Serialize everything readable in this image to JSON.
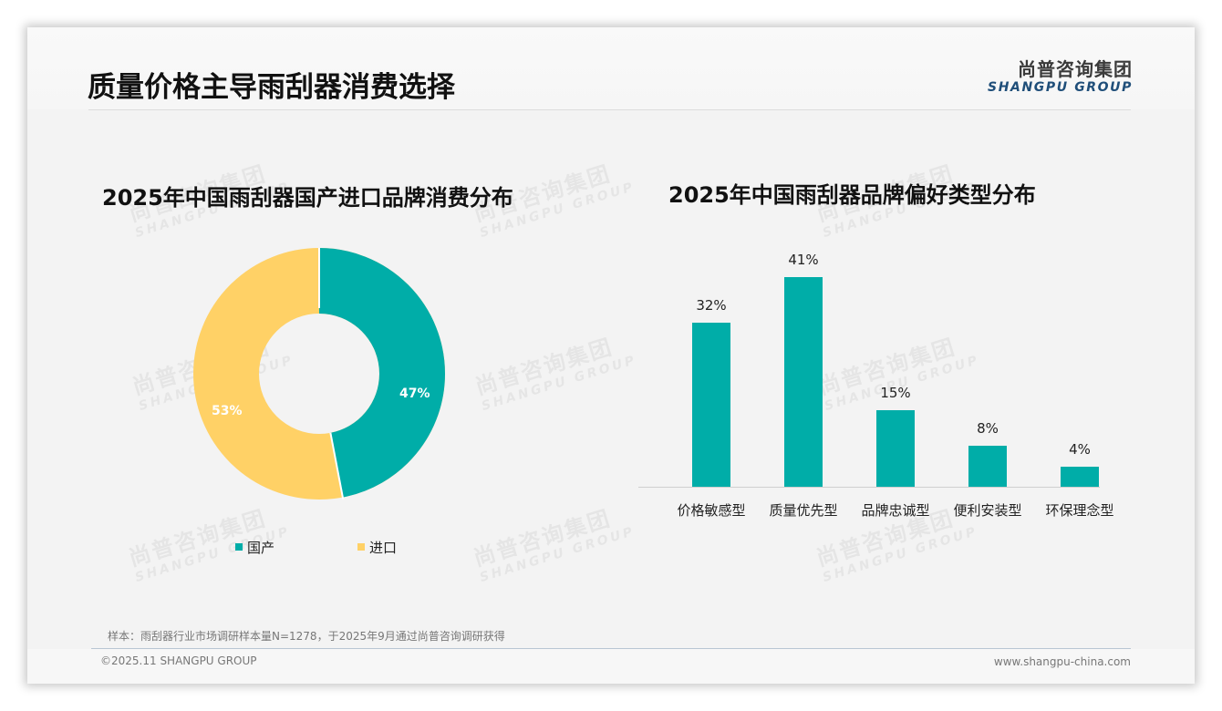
{
  "header": {
    "title": "质量价格主导雨刮器消费选择",
    "logo_cn": "尚普咨询集团",
    "logo_en": "SHANGPU GROUP"
  },
  "watermark": {
    "cn": "尚普咨询集团",
    "en": "SHANGPU GROUP"
  },
  "colors": {
    "teal": "#00ADA8",
    "yellow": "#FFD166",
    "logo_blue": "#1F4E79"
  },
  "left_chart": {
    "title": "2025年中国雨刮器国产进口品牌消费分布",
    "slices": [
      {
        "label": "国产",
        "value_label": "47%",
        "color": "#00ADA8"
      },
      {
        "label": "进口",
        "value_label": "53%",
        "color": "#FFD166"
      }
    ]
  },
  "right_chart": {
    "title": "2025年中国雨刮器品牌偏好类型分布",
    "bars": [
      {
        "label": "价格敏感型",
        "value_label": "32%"
      },
      {
        "label": "质量优先型",
        "value_label": "41%"
      },
      {
        "label": "品牌忠诚型",
        "value_label": "15%"
      },
      {
        "label": "便利安装型",
        "value_label": "8%"
      },
      {
        "label": "环保理念型",
        "value_label": "4%"
      }
    ]
  },
  "chart_data": [
    {
      "type": "pie",
      "variant": "donut",
      "title": "2025年中国雨刮器国产进口品牌消费分布",
      "categories": [
        "国产",
        "进口"
      ],
      "values": [
        47,
        53
      ],
      "unit": "%",
      "colors": [
        "#00ADA8",
        "#FFD166"
      ],
      "legend_position": "bottom"
    },
    {
      "type": "bar",
      "title": "2025年中国雨刮器品牌偏好类型分布",
      "categories": [
        "价格敏感型",
        "质量优先型",
        "品牌忠诚型",
        "便利安装型",
        "环保理念型"
      ],
      "values": [
        32,
        41,
        15,
        8,
        4
      ],
      "unit": "%",
      "xlabel": "",
      "ylabel": "",
      "ylim": [
        0,
        45
      ],
      "grid": false,
      "data_labels": true,
      "color": "#00ADA8"
    }
  ],
  "footer": {
    "sample_note": "样本：雨刮器行业市场调研样本量N=1278，于2025年9月通过尚普咨询调研获得",
    "copyright": "©2025.11 SHANGPU GROUP",
    "website": "www.shangpu-china.com"
  }
}
